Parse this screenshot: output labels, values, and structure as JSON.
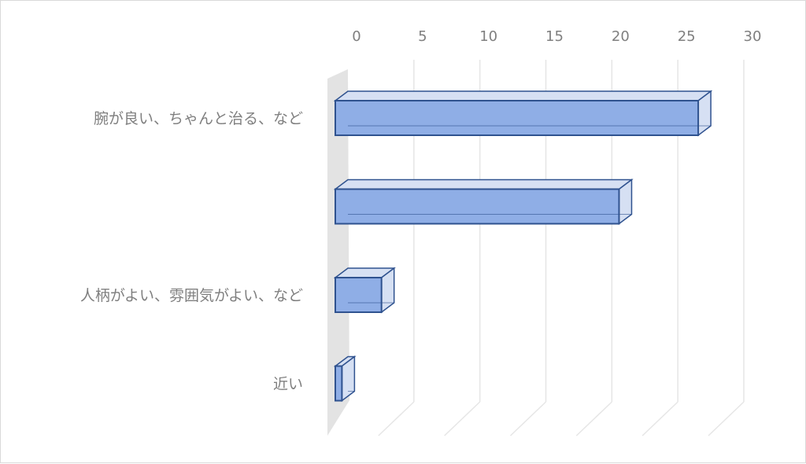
{
  "chart_data": {
    "type": "bar",
    "orientation": "horizontal",
    "style": "3d-clustered-bar",
    "title": "",
    "xlabel": "",
    "ylabel": "",
    "categories": [
      "腕が良い、ちゃんと治る、など",
      "",
      "人柄がよい、雰囲気がよい、など",
      "近い"
    ],
    "values": [
      27.5,
      21.5,
      3.5,
      0.5
    ],
    "xlim": [
      0,
      30
    ],
    "xticks": [
      0,
      5,
      10,
      15,
      20,
      25,
      30
    ],
    "x_axis_position": "top",
    "grid": true,
    "legend": "none",
    "colors": {
      "bar_face": "#8faee6",
      "bar_edge": "#2f528f",
      "bar_side": "#d6e0f3",
      "wall": "#e3e3e3",
      "grid": "#e6e6e6",
      "text": "#7f7f7f"
    }
  }
}
